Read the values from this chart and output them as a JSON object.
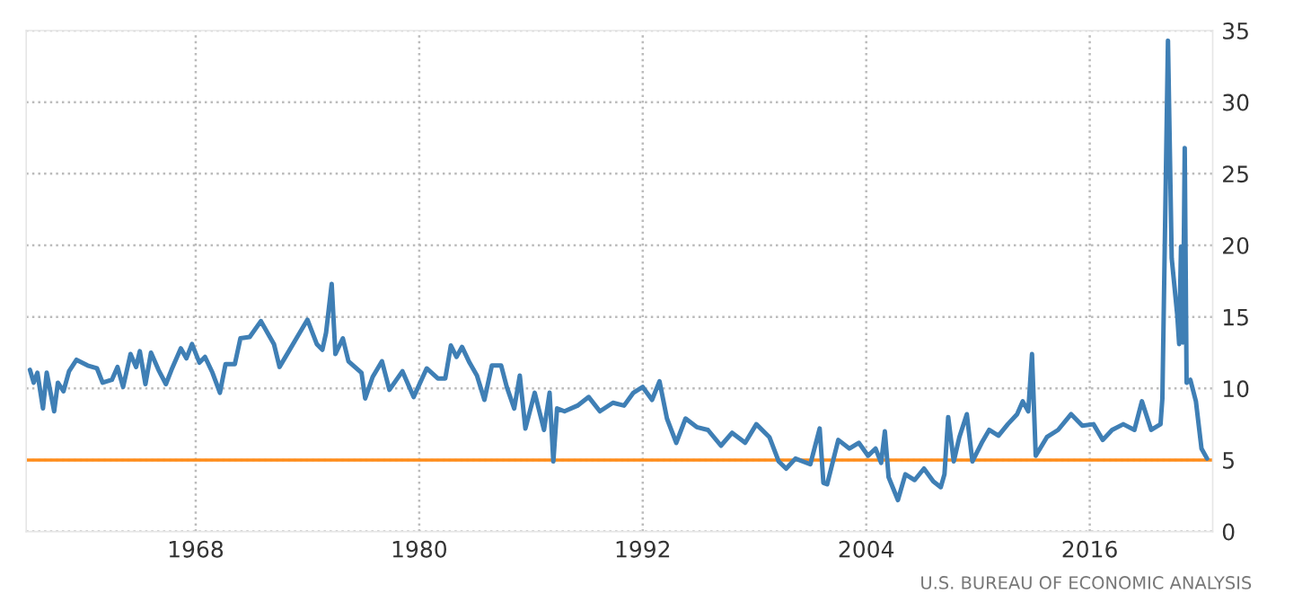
{
  "chart_data": {
    "type": "line",
    "xlim": [
      1958.9,
      2022.6
    ],
    "xticks": [
      1968,
      1980,
      1992,
      2004,
      2016
    ],
    "ylim": [
      0,
      35
    ],
    "yticks": [
      0,
      5,
      10,
      15,
      20,
      25,
      30,
      35
    ],
    "grid": true,
    "line_style": "solid",
    "marker": "none",
    "series": [
      {
        "color": "#3f7fb5",
        "x": [
          1959.1,
          1959.3,
          1959.5,
          1959.8,
          1960.0,
          1960.4,
          1960.6,
          1960.9,
          1961.2,
          1961.6,
          1962.2,
          1962.7,
          1963.0,
          1963.5,
          1963.8,
          1964.1,
          1964.5,
          1964.8,
          1965.0,
          1965.3,
          1965.6,
          1966.0,
          1966.4,
          1966.7,
          1967.2,
          1967.5,
          1967.8,
          1968.2,
          1968.5,
          1968.9,
          1969.3,
          1969.6,
          1970.1,
          1970.4,
          1970.9,
          1971.5,
          1972.2,
          1972.5,
          1973.0,
          1973.5,
          1974.0,
          1974.5,
          1974.8,
          1975.0,
          1975.3,
          1975.5,
          1975.9,
          1976.2,
          1976.9,
          1977.1,
          1977.5,
          1978.0,
          1978.4,
          1979.1,
          1979.7,
          1980.4,
          1981.0,
          1981.4,
          1981.7,
          1982.0,
          1982.3,
          1982.7,
          1983.1,
          1983.5,
          1983.9,
          1984.4,
          1984.7,
          1985.1,
          1985.4,
          1985.7,
          1986.2,
          1986.7,
          1987.0,
          1987.2,
          1987.4,
          1987.8,
          1988.5,
          1989.1,
          1989.7,
          1990.4,
          1991.0,
          1991.5,
          1992.0,
          1992.5,
          1992.9,
          1993.3,
          1993.8,
          1994.3,
          1994.9,
          1995.5,
          1996.2,
          1996.8,
          1997.5,
          1998.1,
          1998.8,
          1999.3,
          1999.7,
          2000.2,
          2001.0,
          2001.5,
          2001.7,
          2001.9,
          2002.5,
          2003.1,
          2003.6,
          2004.1,
          2004.5,
          2004.8,
          2005.0,
          2005.2,
          2005.7,
          2006.1,
          2006.6,
          2007.1,
          2007.6,
          2008.0,
          2008.2,
          2008.4,
          2008.7,
          2009.0,
          2009.4,
          2009.7,
          2010.2,
          2010.6,
          2011.1,
          2011.6,
          2012.1,
          2012.4,
          2012.7,
          2012.9,
          2013.1,
          2013.7,
          2014.3,
          2015.0,
          2015.6,
          2016.2,
          2016.7,
          2017.2,
          2017.8,
          2018.4,
          2018.8,
          2019.3,
          2019.8,
          2019.9,
          2020.2,
          2020.4,
          2020.7,
          2020.8,
          2020.9,
          2021.0,
          2021.1,
          2021.2,
          2021.4,
          2021.7,
          2022.0,
          2022.3
        ],
        "values": [
          11.3,
          10.4,
          11.1,
          8.6,
          11.1,
          8.4,
          10.4,
          9.8,
          11.2,
          12.0,
          11.6,
          11.4,
          10.4,
          10.6,
          11.5,
          10.1,
          12.4,
          11.5,
          12.6,
          10.3,
          12.5,
          11.3,
          10.3,
          11.3,
          12.8,
          12.1,
          13.1,
          11.8,
          12.2,
          11.1,
          9.7,
          11.7,
          11.7,
          13.5,
          13.6,
          14.7,
          13.1,
          11.5,
          12.6,
          13.7,
          14.8,
          13.1,
          12.7,
          13.9,
          17.3,
          12.4,
          13.5,
          11.9,
          11.1,
          9.3,
          10.8,
          11.9,
          9.9,
          11.2,
          9.4,
          11.4,
          10.7,
          10.7,
          13.0,
          12.2,
          12.9,
          11.8,
          10.9,
          9.2,
          11.6,
          11.6,
          10.1,
          8.6,
          10.9,
          7.2,
          9.7,
          7.1,
          9.7,
          4.9,
          8.6,
          8.4,
          8.8,
          9.4,
          8.4,
          9.0,
          8.8,
          9.7,
          10.1,
          9.2,
          10.5,
          7.9,
          6.2,
          7.9,
          7.3,
          7.1,
          6.0,
          6.9,
          6.2,
          7.5,
          6.6,
          4.9,
          4.4,
          5.1,
          4.7,
          7.2,
          3.4,
          3.3,
          6.4,
          5.8,
          6.2,
          5.3,
          5.8,
          4.8,
          7.0,
          3.8,
          2.2,
          4.0,
          3.6,
          4.4,
          3.5,
          3.1,
          4.0,
          8.0,
          4.9,
          6.6,
          8.2,
          4.9,
          6.2,
          7.1,
          6.7,
          7.5,
          8.2,
          9.1,
          8.4,
          12.4,
          5.3,
          6.6,
          7.1,
          8.2,
          7.4,
          7.5,
          6.4,
          7.1,
          7.5,
          7.1,
          9.1,
          7.1,
          7.5,
          9.3,
          34.3,
          19.1,
          15.1,
          13.1,
          19.9,
          13.2,
          26.8,
          10.4,
          10.6,
          9.1,
          5.8,
          5.1
        ]
      }
    ],
    "ref_lines": [
      {
        "axis": "y",
        "value": 5,
        "color": "#ff8c1a"
      }
    ],
    "annotations": [
      "U.S. BUREAU OF ECONOMIC ANALYSIS"
    ]
  }
}
